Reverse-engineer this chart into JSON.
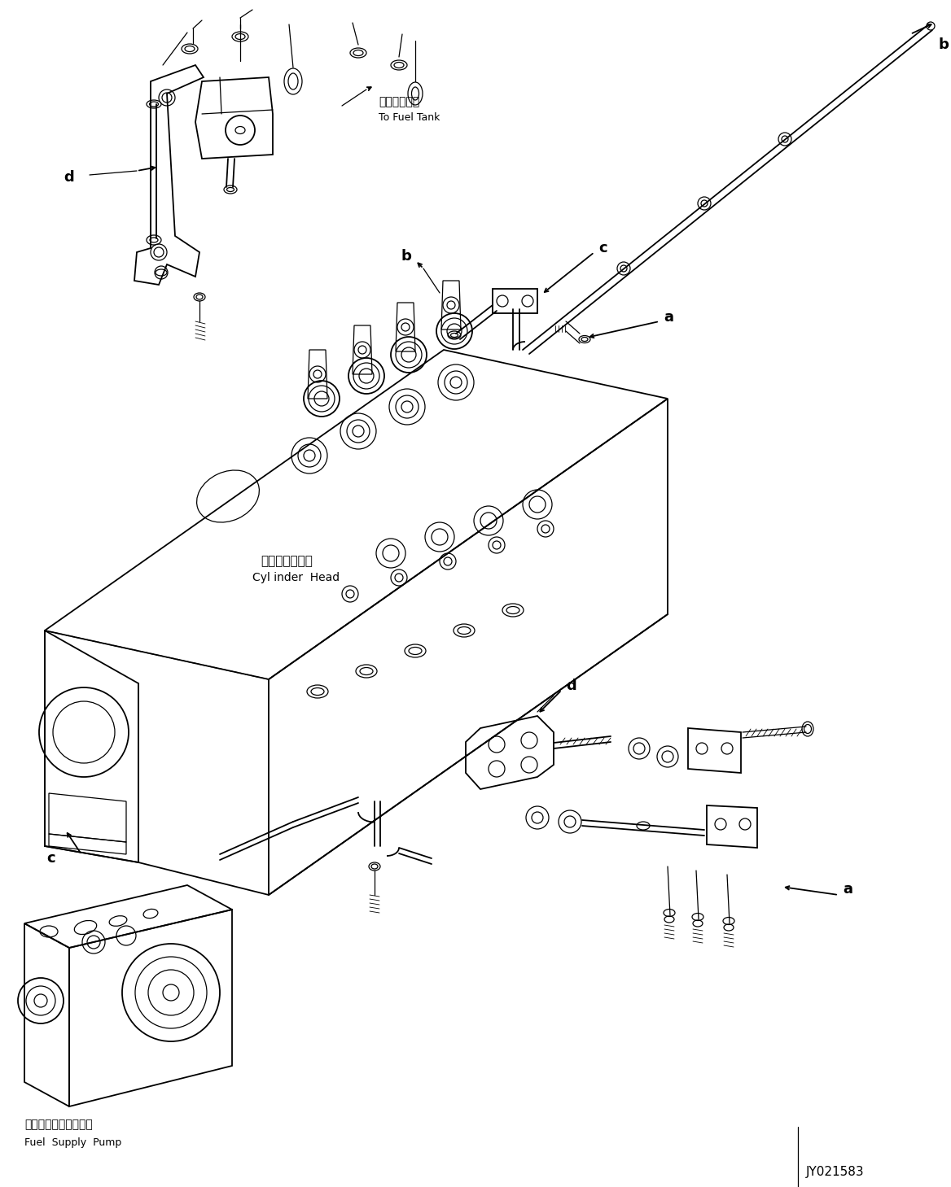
{
  "bg_color": "#ffffff",
  "line_color": "#000000",
  "fig_width": 11.68,
  "fig_height": 14.59,
  "dpi": 100,
  "part_code": "JY021583",
  "labels": {
    "fuel_tank_ja": "燃料タンクへ",
    "fuel_tank_en": "To Fuel Tank",
    "cylinder_head_ja": "シリンダヘッド",
    "cylinder_head_en": "Cyl inder  Head",
    "fuel_pump_ja": "フェルサプライポンプ",
    "fuel_pump_en": "Fuel  Supply  Pump"
  }
}
